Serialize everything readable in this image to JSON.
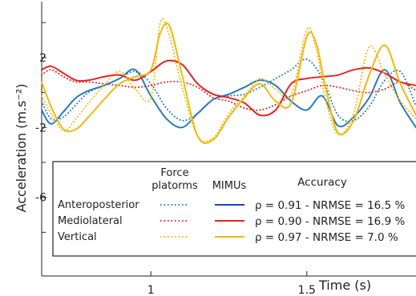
{
  "chart_data": {
    "type": "line",
    "xlabel": "Time (s)",
    "ylabel": "Acceleration (m.s⁻²)",
    "xlim": [
      0.65,
      1.85
    ],
    "ylim": [
      -10.5,
      5.2
    ],
    "x_ticks": [
      1,
      1.5
    ],
    "y_ticks": [
      2,
      -2,
      -6
    ],
    "grid": false,
    "legend_position": "bottom",
    "legend": {
      "col_header_force": [
        "Force",
        "platorms"
      ],
      "col_header_mimus": "MIMUs",
      "col_header_accuracy": "Accuracy",
      "rows": [
        {
          "name": "Anteroposterior",
          "accuracy": "ρ = 0.91 - NRMSE = 16.5 %",
          "color": "#2b7bba"
        },
        {
          "name": "Mediolateral",
          "accuracy": "ρ = 0.90 - NRMSE = 16.9 %",
          "color": "#e8231e"
        },
        {
          "name": "Vertical",
          "accuracy": "ρ = 0.97 - NRMSE = 7.0 %",
          "color": "#f0b90f"
        }
      ]
    },
    "series": [
      {
        "name": "Anteroposterior",
        "source": "Force platorms",
        "style": "dotted",
        "color": "#2b7bba",
        "x": [
          0.65,
          0.68,
          0.72,
          0.76,
          0.8,
          0.85,
          0.9,
          0.95,
          1.0,
          1.05,
          1.1,
          1.15,
          1.2,
          1.25,
          1.3,
          1.35,
          1.4,
          1.45,
          1.5,
          1.55,
          1.6,
          1.65,
          1.7,
          1.75,
          1.8,
          1.85
        ],
        "y": [
          -0.5,
          -1.5,
          -1.4,
          -0.7,
          0.0,
          0.4,
          0.8,
          1.2,
          0.5,
          -0.9,
          -1.6,
          -1.2,
          -0.4,
          -0.2,
          -0.1,
          0.3,
          0.8,
          1.3,
          1.9,
          0.8,
          -1.3,
          -1.6,
          -0.8,
          0.7,
          1.2,
          -0.8
        ]
      },
      {
        "name": "Anteroposterior",
        "source": "MIMUs",
        "style": "solid",
        "color": "#2b7bba",
        "x": [
          0.65,
          0.68,
          0.72,
          0.76,
          0.8,
          0.85,
          0.9,
          0.95,
          1.0,
          1.05,
          1.1,
          1.15,
          1.2,
          1.25,
          1.3,
          1.35,
          1.4,
          1.45,
          1.5,
          1.55,
          1.6,
          1.65,
          1.7,
          1.75,
          1.8,
          1.85
        ],
        "y": [
          -1.0,
          -1.8,
          -1.1,
          -0.3,
          0.1,
          0.4,
          0.8,
          1.3,
          -0.2,
          -1.5,
          -2.0,
          -1.2,
          -0.4,
          -0.1,
          0.3,
          0.7,
          0.4,
          -0.5,
          -1.0,
          -0.2,
          -1.9,
          -1.4,
          -0.3,
          1.3,
          -0.6,
          -2.0
        ]
      },
      {
        "name": "Mediolateral",
        "source": "Force platorms",
        "style": "dotted",
        "color": "#e8231e",
        "x": [
          0.65,
          0.68,
          0.72,
          0.76,
          0.8,
          0.85,
          0.9,
          0.95,
          1.0,
          1.05,
          1.1,
          1.15,
          1.2,
          1.25,
          1.3,
          1.35,
          1.4,
          1.45,
          1.5,
          1.55,
          1.6,
          1.65,
          1.7,
          1.75,
          1.8,
          1.85
        ],
        "y": [
          1.0,
          1.3,
          0.9,
          0.6,
          0.6,
          0.5,
          0.4,
          0.3,
          0.4,
          0.6,
          0.6,
          0.3,
          -0.3,
          -0.5,
          -0.9,
          -1.0,
          -0.7,
          -0.2,
          0.1,
          0.4,
          0.3,
          0.1,
          0.0,
          0.2,
          0.6,
          0.1
        ]
      },
      {
        "name": "Mediolateral",
        "source": "MIMUs",
        "style": "solid",
        "color": "#e8231e",
        "x": [
          0.65,
          0.68,
          0.72,
          0.76,
          0.8,
          0.85,
          0.9,
          0.95,
          1.0,
          1.05,
          1.1,
          1.15,
          1.2,
          1.25,
          1.3,
          1.35,
          1.4,
          1.45,
          1.5,
          1.55,
          1.6,
          1.65,
          1.7,
          1.75,
          1.8,
          1.85
        ],
        "y": [
          1.3,
          1.5,
          1.1,
          0.7,
          0.7,
          0.9,
          1.0,
          0.7,
          1.2,
          1.8,
          1.6,
          0.5,
          -0.1,
          -0.3,
          -0.6,
          -1.3,
          -1.0,
          0.5,
          0.8,
          0.9,
          1.0,
          1.3,
          1.4,
          1.1,
          0.6,
          0.4
        ]
      },
      {
        "name": "Vertical",
        "source": "Force platorms",
        "style": "dotted",
        "color": "#f0b90f",
        "x": [
          0.65,
          0.68,
          0.72,
          0.76,
          0.8,
          0.85,
          0.9,
          0.95,
          1.0,
          1.03,
          1.06,
          1.1,
          1.15,
          1.2,
          1.25,
          1.3,
          1.35,
          1.4,
          1.45,
          1.5,
          1.53,
          1.56,
          1.6,
          1.65,
          1.7,
          1.75,
          1.8,
          1.85
        ],
        "y": [
          -0.2,
          -1.2,
          -2.2,
          -1.5,
          -0.6,
          0.4,
          1.2,
          0.2,
          -0.3,
          4.0,
          3.2,
          0.3,
          -2.5,
          -2.6,
          -1.2,
          -0.2,
          0.8,
          0.2,
          -0.1,
          3.6,
          2.5,
          -0.4,
          -2.4,
          -1.2,
          2.6,
          1.0,
          -0.5,
          -1.5
        ]
      },
      {
        "name": "Vertical",
        "source": "MIMUs",
        "style": "solid",
        "color": "#f0b90f",
        "x": [
          0.65,
          0.68,
          0.72,
          0.76,
          0.8,
          0.85,
          0.9,
          0.95,
          1.0,
          1.03,
          1.06,
          1.1,
          1.15,
          1.2,
          1.25,
          1.3,
          1.35,
          1.4,
          1.45,
          1.5,
          1.53,
          1.56,
          1.6,
          1.65,
          1.7,
          1.75,
          1.8,
          1.85
        ],
        "y": [
          0.6,
          -0.8,
          -2.1,
          -2.1,
          -1.4,
          -0.4,
          0.5,
          0.9,
          1.3,
          3.4,
          3.8,
          1.0,
          -2.5,
          -2.7,
          -1.4,
          -0.3,
          0.5,
          -0.5,
          -0.6,
          3.2,
          2.8,
          0.3,
          -2.3,
          -1.6,
          1.0,
          2.7,
          0.5,
          -1.3
        ]
      }
    ]
  }
}
